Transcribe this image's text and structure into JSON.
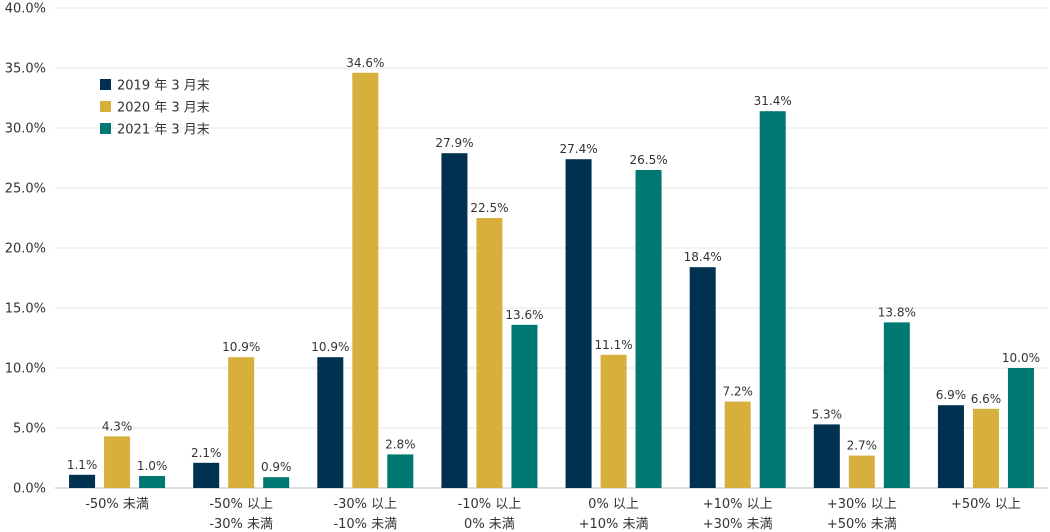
{
  "chart_data": {
    "type": "bar",
    "categories": [
      [
        "-50% 未満"
      ],
      [
        "-50% 以上",
        "-30% 未満"
      ],
      [
        "-30% 以上",
        "-10% 未満"
      ],
      [
        "-10% 以上",
        "0% 未満"
      ],
      [
        "0% 以上",
        "+10% 未満"
      ],
      [
        "+10% 以上",
        "+30% 未満"
      ],
      [
        "+30% 以上",
        "+50% 未満"
      ],
      [
        "+50% 以上"
      ]
    ],
    "series": [
      {
        "name": "2019 年 3 月末",
        "color": "#003150",
        "values": [
          1.1,
          2.1,
          10.9,
          27.9,
          27.4,
          18.4,
          5.3,
          6.9
        ]
      },
      {
        "name": "2020 年 3 月末",
        "color": "#D6AF3D",
        "values": [
          4.3,
          10.9,
          34.6,
          22.5,
          11.1,
          7.2,
          2.7,
          6.6
        ]
      },
      {
        "name": "2021 年 3 月末",
        "color": "#007872",
        "values": [
          1.0,
          0.9,
          2.8,
          13.6,
          26.5,
          31.4,
          13.8,
          10.0
        ]
      }
    ],
    "value_format": "%",
    "ylim": [
      0,
      40
    ],
    "yticks": [
      "0.0%",
      "5.0%",
      "10.0%",
      "15.0%",
      "20.0%",
      "25.0%",
      "30.0%",
      "35.0%",
      "40.0%"
    ],
    "grid": true,
    "legend_position": "top-left"
  }
}
